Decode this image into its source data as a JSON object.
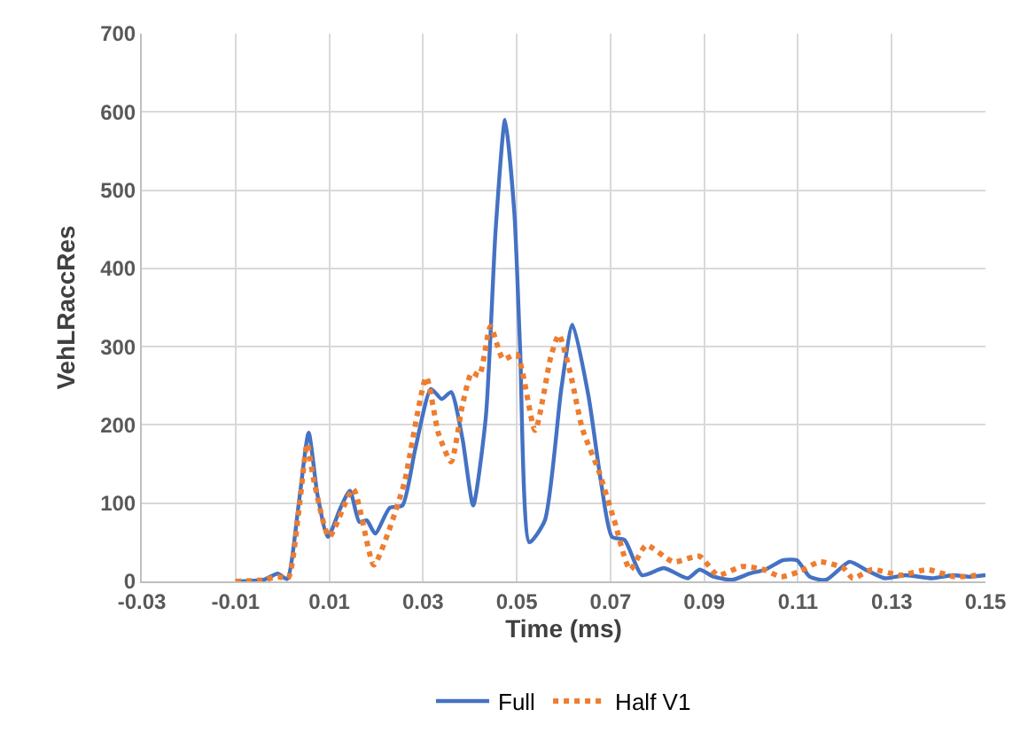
{
  "chart_data": {
    "type": "line",
    "xlabel": "Time (ms)",
    "ylabel": "VehLRaccRes",
    "xlim": [
      -0.03,
      0.15
    ],
    "xticks": [
      -0.03,
      -0.01,
      0.01,
      0.03,
      0.05,
      0.07,
      0.09,
      0.11,
      0.13,
      0.15
    ],
    "ylim": [
      0,
      700
    ],
    "yticks": [
      0,
      100,
      200,
      300,
      400,
      500,
      600,
      700
    ],
    "grid": true,
    "legend": "bottom",
    "marker": "none",
    "series": [
      {
        "name": "Full",
        "color": "#4472c4",
        "line_style": "solid",
        "x": [
          -0.01,
          -0.004,
          -0.001,
          0.001,
          0.0035,
          0.0056,
          0.0075,
          0.0097,
          0.0124,
          0.0144,
          0.0164,
          0.018,
          0.0198,
          0.0229,
          0.0256,
          0.0283,
          0.0317,
          0.034,
          0.036,
          0.0384,
          0.0407,
          0.0434,
          0.0455,
          0.0475,
          0.0495,
          0.0507,
          0.0527,
          0.056,
          0.0595,
          0.0619,
          0.0653,
          0.068,
          0.0703,
          0.073,
          0.0767,
          0.0814,
          0.0865,
          0.089,
          0.092,
          0.096,
          0.0997,
          0.103,
          0.1068,
          0.1098,
          0.1125,
          0.116,
          0.121,
          0.1244,
          0.1285,
          0.133,
          0.1386,
          0.143,
          0.1465,
          0.15
        ],
        "values": [
          0,
          2,
          10,
          3,
          100,
          190,
          110,
          57,
          94,
          116,
          76,
          78,
          61,
          94,
          97,
          168,
          246,
          233,
          242,
          183,
          97,
          210,
          450,
          590,
          470,
          300,
          50,
          78,
          246,
          328,
          237,
          126,
          57,
          53,
          8,
          17,
          4,
          15,
          6,
          2,
          10,
          15,
          27,
          27,
          6,
          2,
          25,
          15,
          4,
          8,
          4,
          8,
          6,
          8
        ]
      },
      {
        "name": "Half V1",
        "color": "#ed7d31",
        "line_style": "dotted",
        "x": [
          -0.01,
          -0.004,
          -0.001,
          0.0012,
          0.0035,
          0.0053,
          0.0066,
          0.01,
          0.0151,
          0.0195,
          0.0226,
          0.026,
          0.0307,
          0.0333,
          0.036,
          0.0384,
          0.0404,
          0.042,
          0.0444,
          0.0471,
          0.05,
          0.0539,
          0.0573,
          0.059,
          0.0614,
          0.064,
          0.0675,
          0.0708,
          0.0742,
          0.0776,
          0.0834,
          0.089,
          0.0929,
          0.098,
          0.1027,
          0.1064,
          0.1105,
          0.1146,
          0.1197,
          0.1217,
          0.1258,
          0.1319,
          0.1376,
          0.1434,
          0.1488
        ],
        "values": [
          0,
          2,
          6,
          4,
          90,
          176,
          132,
          57,
          118,
          21,
          63,
          126,
          261,
          189,
          153,
          225,
          267,
          263,
          326,
          284,
          290,
          193,
          288,
          315,
          267,
          195,
          141,
          78,
          15,
          46,
          25,
          32,
          8,
          19,
          15,
          6,
          13,
          25,
          17,
          4,
          15,
          8,
          15,
          6,
          8
        ]
      }
    ]
  }
}
